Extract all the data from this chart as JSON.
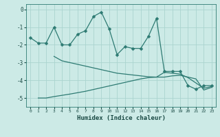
{
  "xlabel": "Humidex (Indice chaleur)",
  "xlim": [
    -0.5,
    23.5
  ],
  "ylim": [
    -5.5,
    0.3
  ],
  "yticks": [
    0,
    -1,
    -2,
    -3,
    -4,
    -5
  ],
  "xticks": [
    0,
    1,
    2,
    3,
    4,
    5,
    6,
    7,
    8,
    9,
    10,
    11,
    12,
    13,
    14,
    15,
    16,
    17,
    18,
    19,
    20,
    21,
    22,
    23
  ],
  "bg_color": "#cceae6",
  "grid_color": "#aad4cf",
  "line_color": "#2d7a72",
  "line1_x": [
    0,
    1,
    2,
    3,
    4,
    5,
    6,
    7,
    8,
    9,
    10,
    11,
    12,
    13,
    14,
    15,
    16,
    17,
    18,
    19,
    20,
    21,
    22,
    23
  ],
  "line1_y": [
    -1.6,
    -1.9,
    -1.9,
    -1.0,
    -2.0,
    -2.0,
    -1.4,
    -1.2,
    -0.4,
    -0.15,
    -1.1,
    -2.55,
    -2.1,
    -2.2,
    -2.2,
    -1.5,
    -0.5,
    -3.5,
    -3.5,
    -3.5,
    -4.3,
    -4.5,
    -4.3,
    -4.3
  ],
  "line2_x": [
    3,
    4,
    5,
    6,
    7,
    8,
    9,
    10,
    11,
    12,
    13,
    14,
    15,
    16,
    17,
    18,
    19,
    20,
    21,
    22,
    23
  ],
  "line2_y": [
    -2.65,
    -2.9,
    -3.0,
    -3.1,
    -3.2,
    -3.3,
    -3.4,
    -3.5,
    -3.6,
    -3.65,
    -3.7,
    -3.75,
    -3.8,
    -3.82,
    -3.55,
    -3.6,
    -3.65,
    -3.85,
    -4.15,
    -4.45,
    -4.35
  ],
  "line3_x": [
    1,
    2,
    3,
    4,
    5,
    6,
    7,
    8,
    9,
    10,
    11,
    12,
    13,
    14,
    15,
    16,
    17,
    18,
    19,
    20,
    21,
    22,
    23
  ],
  "line3_y": [
    -5.0,
    -5.0,
    -4.92,
    -4.85,
    -4.78,
    -4.7,
    -4.62,
    -4.52,
    -4.42,
    -4.32,
    -4.22,
    -4.12,
    -4.02,
    -3.92,
    -3.85,
    -3.82,
    -3.82,
    -3.75,
    -3.72,
    -3.82,
    -3.92,
    -4.55,
    -4.4
  ]
}
